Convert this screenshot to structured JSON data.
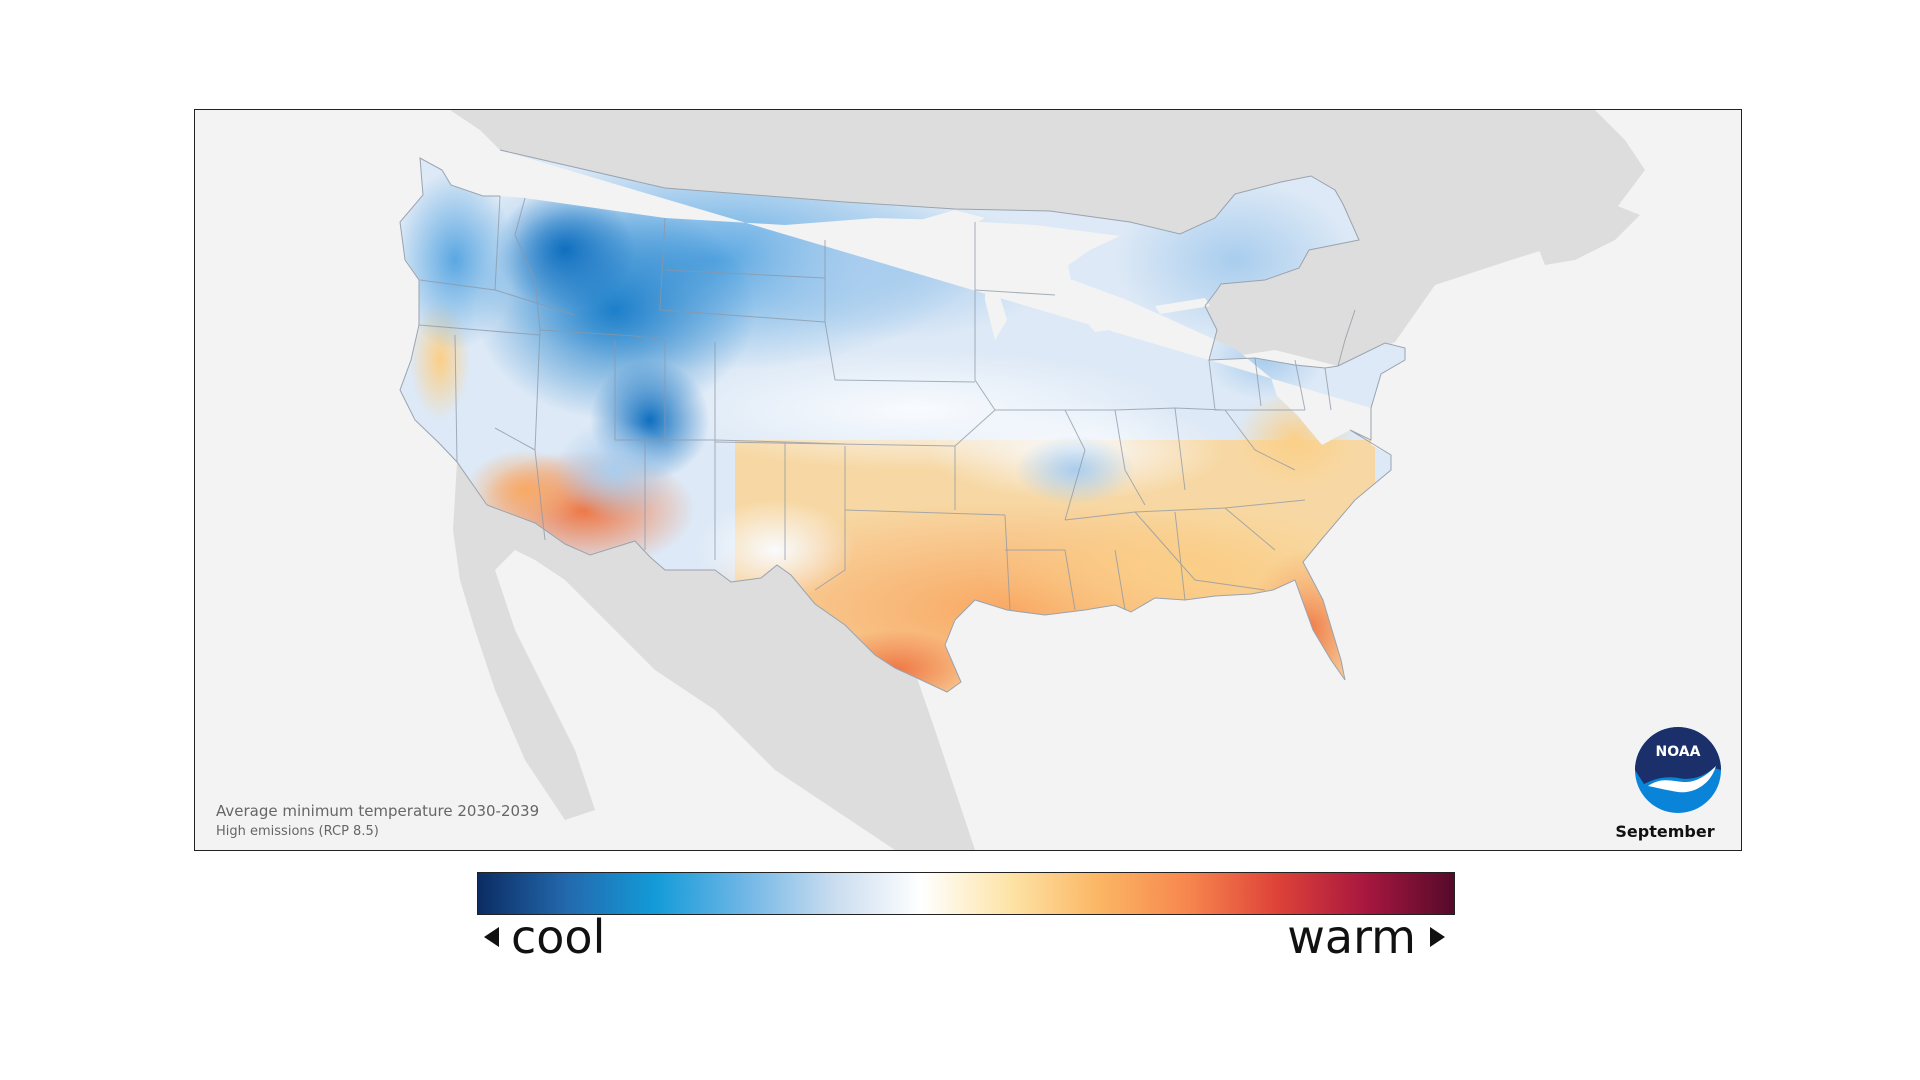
{
  "map": {
    "caption_title": "Average minimum temperature 2030-2039",
    "caption_subtitle": "High emissions (RCP 8.5)",
    "month": "September",
    "logo_text": "NOAA"
  },
  "legend": {
    "cool_label": "cool",
    "warm_label": "warm",
    "gradient_colors": [
      "#0b2c63",
      "#2369ad",
      "#139bd8",
      "#6fb6e6",
      "#c9dcef",
      "#ffffff",
      "#fde3a6",
      "#fbb664",
      "#f7864e",
      "#de4338",
      "#a8173f",
      "#560a2b"
    ]
  },
  "colors": {
    "map_background": "#f3f3f3",
    "land_neighbors": "#dddddd",
    "state_borders": "#8c97a6"
  }
}
